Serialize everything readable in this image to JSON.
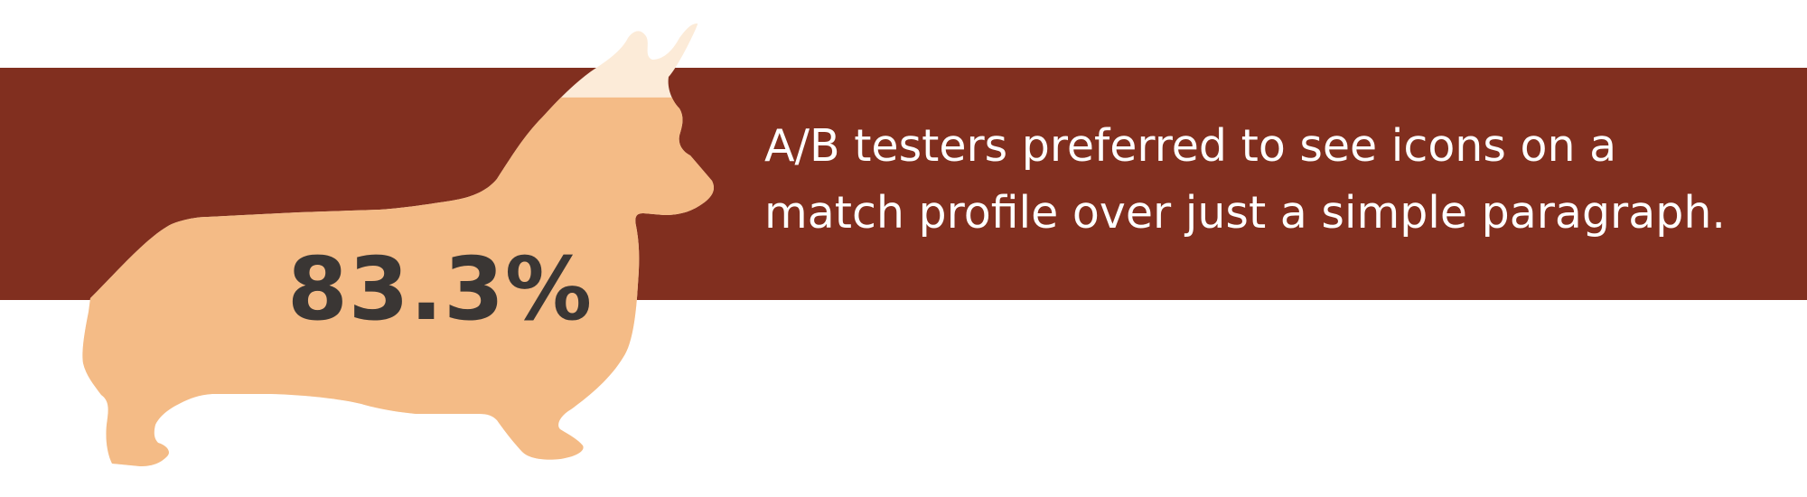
{
  "stat": {
    "value": "83.3%",
    "fill_fraction": 0.833
  },
  "caption": {
    "text": "A/B testers preferred to see icons on a match profile over just a simple paragraph."
  },
  "colors": {
    "band": "#812f1f",
    "corgi_fill": "#f4bb86",
    "corgi_empty": "#fcebd8",
    "stat_text": "#3a3634",
    "caption_text": "#ffffff",
    "background": "#ffffff"
  },
  "graphic": {
    "icon": "corgi-silhouette-icon"
  }
}
